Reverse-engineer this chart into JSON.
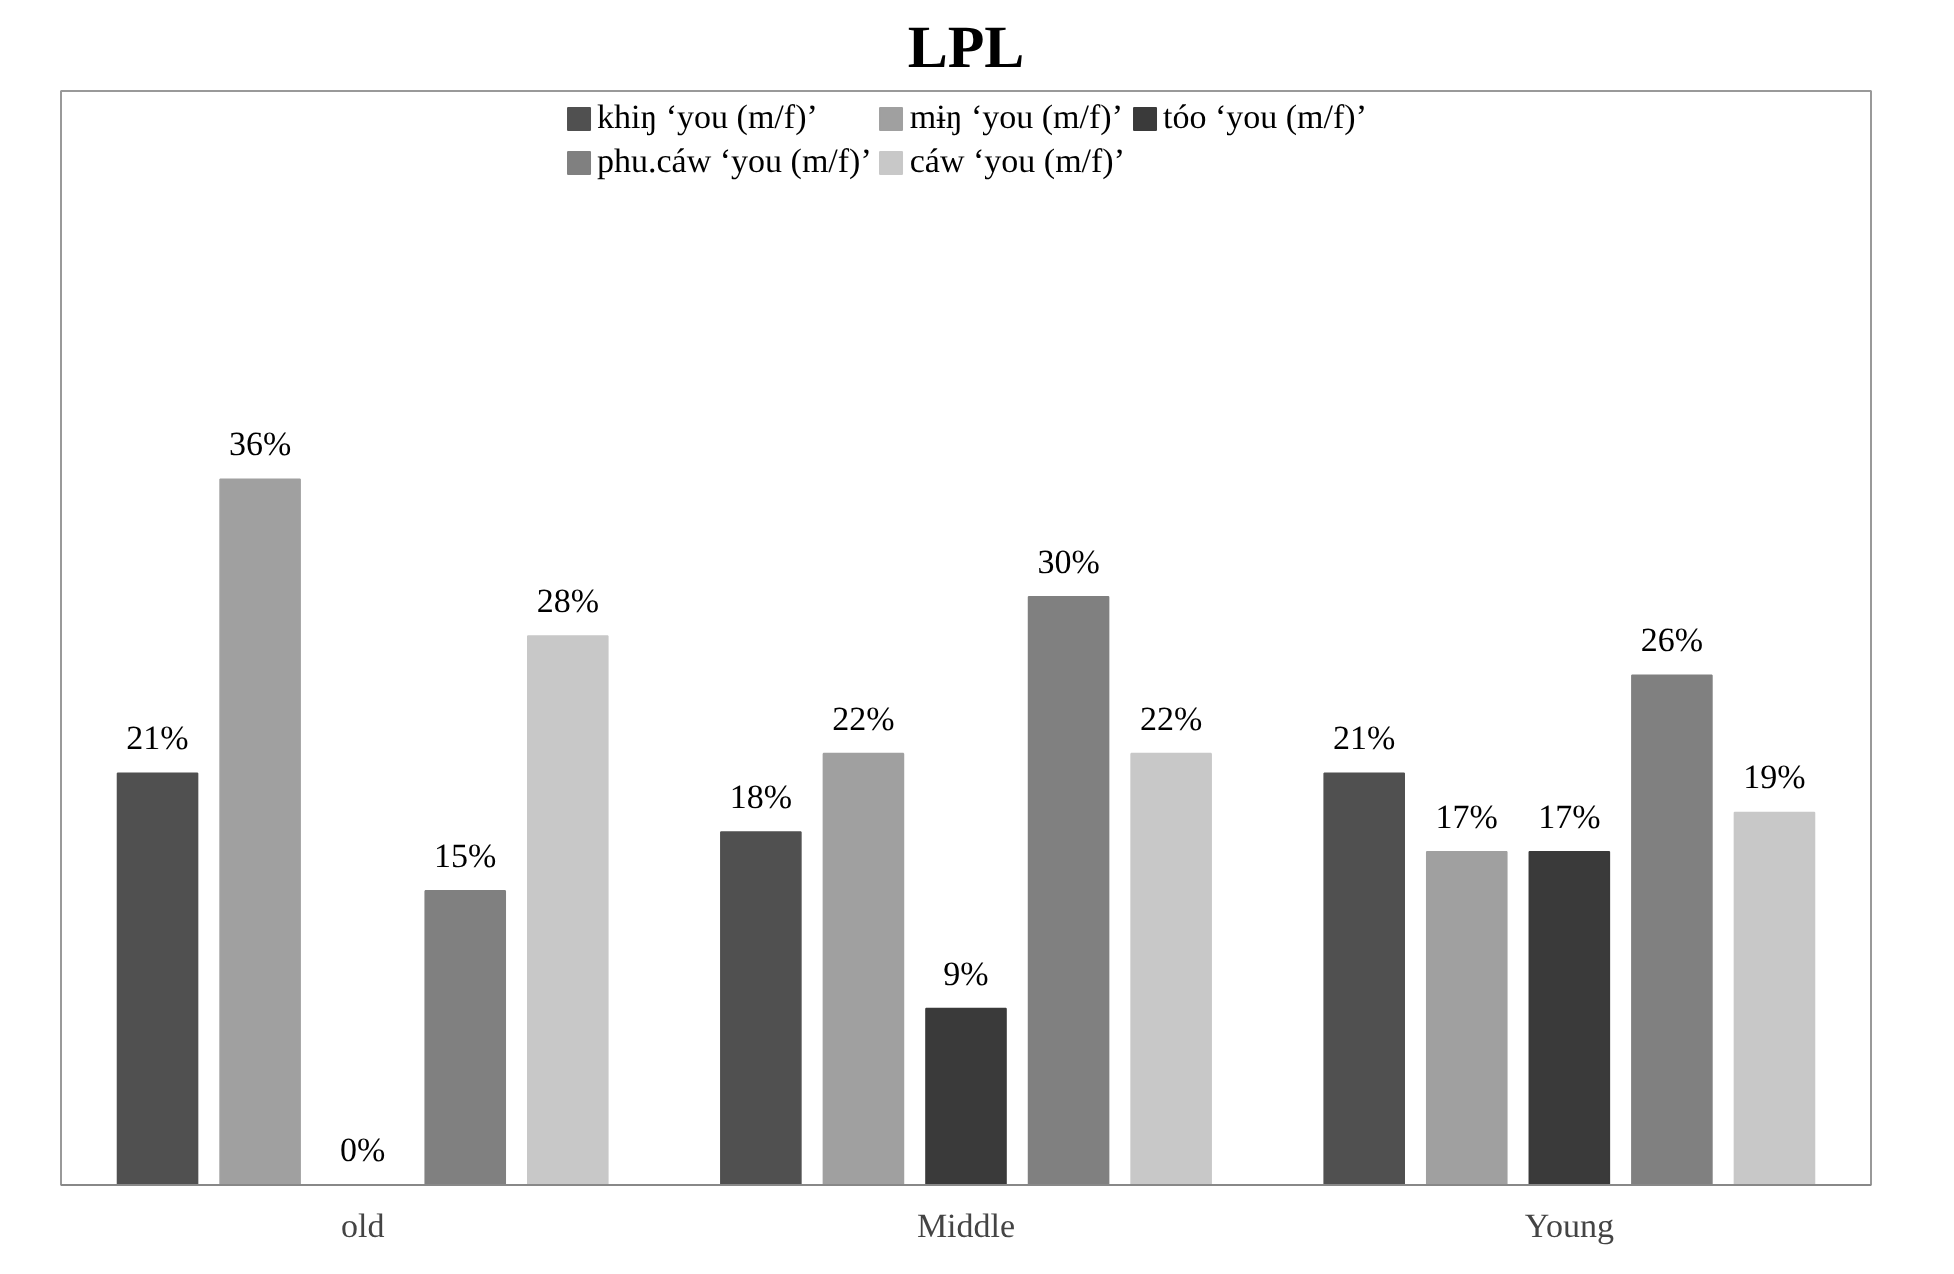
{
  "chart_data": {
    "type": "bar",
    "title": "LPL",
    "categories": [
      "old",
      "Middle",
      "Young"
    ],
    "legend": "top",
    "series": [
      {
        "name": "khiŋ ‘you (m/f)’",
        "color": "#505050",
        "values": [
          21,
          18,
          21
        ],
        "value_labels": [
          "21%",
          "18%",
          "21%"
        ]
      },
      {
        "name": "mɨŋ ‘you (m/f)’",
        "color": "#a0a0a0",
        "values": [
          36,
          22,
          17
        ],
        "value_labels": [
          "36%",
          "22%",
          "17%"
        ]
      },
      {
        "name": "tóo ‘you (m/f)’",
        "color": "#3a3a3a",
        "values": [
          0,
          9,
          17
        ],
        "value_labels": [
          "0%",
          "9%",
          "17%"
        ]
      },
      {
        "name": "phu.cáw ‘you (m/f)’",
        "color": "#808080",
        "values": [
          15,
          30,
          26
        ],
        "value_labels": [
          "15%",
          "30%",
          "26%"
        ]
      },
      {
        "name": "cáw ‘you (m/f)’",
        "color": "#c8c8c8",
        "values": [
          28,
          22,
          19
        ],
        "value_labels": [
          "28%",
          "22%",
          "19%"
        ]
      }
    ]
  }
}
